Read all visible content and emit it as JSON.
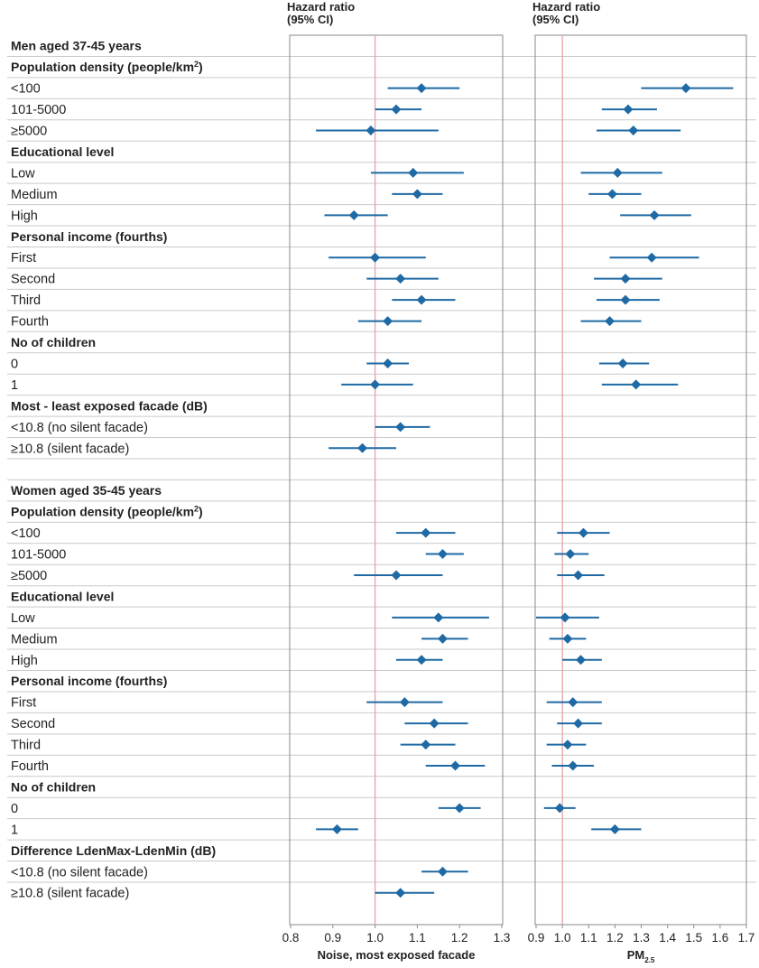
{
  "chart_data": [
    {
      "type": "forest",
      "panel": "noise",
      "header": [
        "Hazard ratio",
        "(95% CI)"
      ],
      "xlabel": "Noise, most exposed facade",
      "xlim": [
        0.8,
        1.3
      ],
      "ticks": [
        0.8,
        0.9,
        1.0,
        1.1,
        1.2,
        1.3
      ],
      "tick_labels": [
        "0.8",
        "0.9",
        "1.0",
        "1.1",
        "1.2",
        "1.3"
      ],
      "reference_line": 1.0
    },
    {
      "type": "forest",
      "panel": "pm25",
      "header": [
        "Hazard ratio",
        "(95% CI)"
      ],
      "xlabel": "PM",
      "xlabel_sub": "2.5",
      "xlim": [
        0.9,
        1.7
      ],
      "ticks": [
        0.9,
        1.0,
        1.1,
        1.2,
        1.3,
        1.4,
        1.5,
        1.6,
        1.7
      ],
      "tick_labels": [
        "0.9",
        "1.0",
        "1.1",
        "1.2",
        "1.3",
        "1.4",
        "1.5",
        "1.6",
        "1.7"
      ],
      "reference_line": 1.0
    }
  ],
  "rows": [
    {
      "label": "Men aged 37-45 years",
      "bold": true
    },
    {
      "label": "Population density (people/km",
      "sup": "2",
      "tail": ")",
      "bold": true
    },
    {
      "label": "<100",
      "noise": [
        1.11,
        1.03,
        1.2
      ],
      "pm": [
        1.47,
        1.3,
        1.65
      ]
    },
    {
      "label": "101-5000",
      "noise": [
        1.05,
        1.0,
        1.11
      ],
      "pm": [
        1.25,
        1.15,
        1.36
      ]
    },
    {
      "label": "≥5000",
      "noise": [
        0.99,
        0.86,
        1.15
      ],
      "pm": [
        1.27,
        1.13,
        1.45
      ]
    },
    {
      "label": "Educational level",
      "bold": true
    },
    {
      "label": "Low",
      "noise": [
        1.09,
        0.99,
        1.21
      ],
      "pm": [
        1.21,
        1.07,
        1.38
      ]
    },
    {
      "label": "Medium",
      "noise": [
        1.1,
        1.04,
        1.16
      ],
      "pm": [
        1.19,
        1.1,
        1.3
      ]
    },
    {
      "label": "High",
      "noise": [
        0.95,
        0.88,
        1.03
      ],
      "pm": [
        1.35,
        1.22,
        1.49
      ]
    },
    {
      "label": "Personal income (fourths)",
      "bold": true
    },
    {
      "label": "First",
      "noise": [
        1.0,
        0.89,
        1.12
      ],
      "pm": [
        1.34,
        1.18,
        1.52
      ]
    },
    {
      "label": "Second",
      "noise": [
        1.06,
        0.98,
        1.15
      ],
      "pm": [
        1.24,
        1.12,
        1.38
      ]
    },
    {
      "label": "Third",
      "noise": [
        1.11,
        1.04,
        1.19
      ],
      "pm": [
        1.24,
        1.13,
        1.37
      ]
    },
    {
      "label": "Fourth",
      "noise": [
        1.03,
        0.96,
        1.11
      ],
      "pm": [
        1.18,
        1.07,
        1.3
      ]
    },
    {
      "label": "No of children",
      "bold": true
    },
    {
      "label": "0",
      "noise": [
        1.03,
        0.98,
        1.08
      ],
      "pm": [
        1.23,
        1.14,
        1.33
      ]
    },
    {
      "label": "1",
      "noise": [
        1.0,
        0.92,
        1.09
      ],
      "pm": [
        1.28,
        1.15,
        1.44
      ]
    },
    {
      "label": "Most - least exposed facade (dB)",
      "bold": true
    },
    {
      "label": "<10.8 (no silent facade)",
      "noise": [
        1.06,
        1.0,
        1.13
      ]
    },
    {
      "label": "≥10.8 (silent facade)",
      "noise": [
        0.97,
        0.89,
        1.05
      ]
    },
    {
      "label": "",
      "spacer": true
    },
    {
      "label": "Women aged 35-45 years",
      "bold": true
    },
    {
      "label": "Population density (people/km",
      "sup": "2",
      "tail": ")",
      "bold": true
    },
    {
      "label": "<100",
      "noise": [
        1.12,
        1.05,
        1.19
      ],
      "pm": [
        1.08,
        0.98,
        1.18
      ]
    },
    {
      "label": "101-5000",
      "noise": [
        1.16,
        1.12,
        1.21
      ],
      "pm": [
        1.03,
        0.97,
        1.1
      ]
    },
    {
      "label": "≥5000",
      "noise": [
        1.05,
        0.95,
        1.16
      ],
      "pm": [
        1.06,
        0.98,
        1.16
      ]
    },
    {
      "label": "Educational level",
      "bold": true
    },
    {
      "label": "Low",
      "noise": [
        1.15,
        1.04,
        1.27
      ],
      "pm": [
        1.01,
        0.9,
        1.14
      ]
    },
    {
      "label": "Medium",
      "noise": [
        1.16,
        1.11,
        1.22
      ],
      "pm": [
        1.02,
        0.95,
        1.09
      ]
    },
    {
      "label": "High",
      "noise": [
        1.11,
        1.05,
        1.16
      ],
      "pm": [
        1.07,
        1.0,
        1.15
      ]
    },
    {
      "label": "Personal income (fourths)",
      "bold": true
    },
    {
      "label": "First",
      "noise": [
        1.07,
        0.98,
        1.16
      ],
      "pm": [
        1.04,
        0.94,
        1.15
      ]
    },
    {
      "label": "Second",
      "noise": [
        1.14,
        1.07,
        1.22
      ],
      "pm": [
        1.06,
        0.98,
        1.15
      ]
    },
    {
      "label": "Third",
      "noise": [
        1.12,
        1.06,
        1.19
      ],
      "pm": [
        1.02,
        0.94,
        1.09
      ]
    },
    {
      "label": "Fourth",
      "noise": [
        1.19,
        1.12,
        1.26
      ],
      "pm": [
        1.04,
        0.96,
        1.12
      ]
    },
    {
      "label": "No of children",
      "bold": true
    },
    {
      "label": "0",
      "noise": [
        1.2,
        1.15,
        1.25
      ],
      "pm": [
        0.99,
        0.93,
        1.05
      ]
    },
    {
      "label": "1",
      "noise": [
        0.91,
        0.86,
        0.96
      ],
      "pm": [
        1.2,
        1.11,
        1.3
      ]
    },
    {
      "label": "Difference LdenMax-LdenMin (dB)",
      "bold": true
    },
    {
      "label": "<10.8 (no silent facade)",
      "noise": [
        1.16,
        1.11,
        1.22
      ]
    },
    {
      "label": "≥10.8 (silent facade)",
      "noise": [
        1.06,
        1.0,
        1.14
      ]
    }
  ],
  "colors": {
    "marker": "#1f6aa5",
    "reference_line": "#e8a0a8",
    "frame": "#8a8a8a",
    "row_rule": "#c9c9c9",
    "text": "#222222"
  }
}
